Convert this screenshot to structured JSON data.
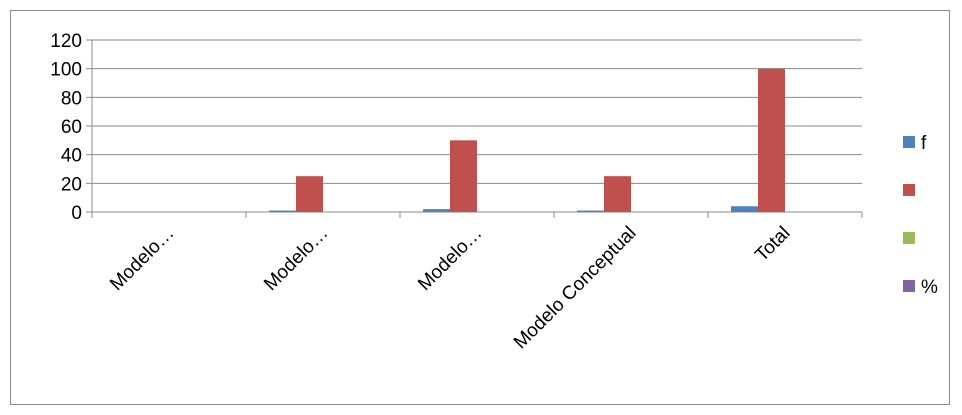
{
  "chart_data": {
    "type": "bar",
    "categories": [
      "Modelo…",
      "Modelo…",
      "Modelo…",
      "Modelo Conceptual",
      "Total"
    ],
    "series": [
      {
        "name": "f",
        "values": [
          0,
          1,
          2,
          1,
          4
        ],
        "color": "#4f81bd"
      },
      {
        "name": "",
        "values": [
          0,
          25,
          50,
          25,
          100
        ],
        "color": "#c0504d"
      },
      {
        "name": "",
        "values": [
          0,
          0,
          0,
          0,
          0
        ],
        "color": "#9bbb59"
      },
      {
        "name": "%",
        "values": [
          0,
          0,
          0,
          0,
          0
        ],
        "color": "#8064a2"
      }
    ],
    "ylim": [
      0,
      120
    ],
    "yticks": [
      0,
      20,
      40,
      60,
      80,
      100,
      120
    ],
    "grid": true,
    "legend_position": "right"
  }
}
